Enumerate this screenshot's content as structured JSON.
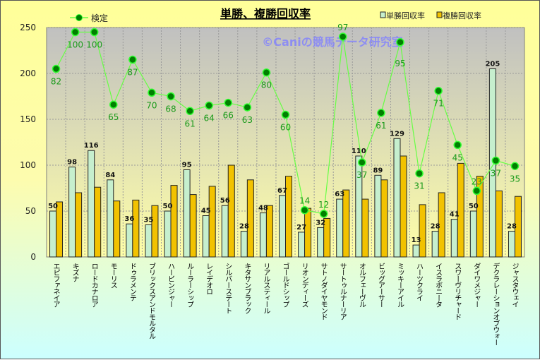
{
  "chart_data": {
    "type": "bar",
    "title": "単勝、複勝回収率",
    "watermark": "©Caniの競馬データ研究室",
    "ylim": [
      0,
      250
    ],
    "yticks": [
      0,
      50,
      100,
      150,
      200,
      250
    ],
    "grid": true,
    "legend_placement": "top",
    "categories": [
      "エピファネイア",
      "キズナ",
      "ロードカナロア",
      "モーリス",
      "ドゥラメンテ",
      "ブリックスアンドモルタル",
      "ハービンジャー",
      "ルーラーシップ",
      "レイデオロ",
      "シルバーステート",
      "キタサンブラック",
      "リアルスティール",
      "ゴールドシップ",
      "リオンディーズ",
      "サトノダイヤモンド",
      "サートゥルナーリア",
      "オルフェーヴル",
      "ビッグアーサー",
      "ミッキーアイル",
      "ハーツクライ",
      "イスラボニータ",
      "スワーヴリチャード",
      "ダイワメジャー",
      "デクラレーションオブウォー",
      "ジャスタウェイ"
    ],
    "series": [
      {
        "name": "単勝回収率",
        "type": "bar",
        "color": "#c6efce",
        "values": [
          50,
          98,
          116,
          84,
          36,
          35,
          50,
          95,
          45,
          56,
          28,
          48,
          67,
          27,
          32,
          63,
          110,
          89,
          129,
          13,
          28,
          41,
          50,
          205,
          28
        ]
      },
      {
        "name": "複勝回収率",
        "type": "bar",
        "color": "#f2c200",
        "values": [
          60,
          70,
          76,
          61,
          62,
          56,
          78,
          68,
          77,
          100,
          84,
          56,
          88,
          53,
          42,
          73,
          63,
          84,
          110,
          57,
          70,
          102,
          88,
          72,
          66
        ]
      },
      {
        "name": "検定",
        "type": "line",
        "color": "#00a000",
        "values": [
          205,
          245,
          245,
          166,
          215,
          179,
          175,
          159,
          165,
          168,
          163,
          201,
          155,
          51,
          47,
          240,
          103,
          157,
          234,
          91,
          181,
          122,
          72,
          105,
          99
        ],
        "labels": [
          82,
          100,
          100,
          65,
          87,
          70,
          68,
          61,
          64,
          66,
          63,
          80,
          60,
          14,
          12,
          97,
          37,
          61,
          95,
          31,
          71,
          45,
          23,
          37,
          35
        ]
      }
    ]
  }
}
